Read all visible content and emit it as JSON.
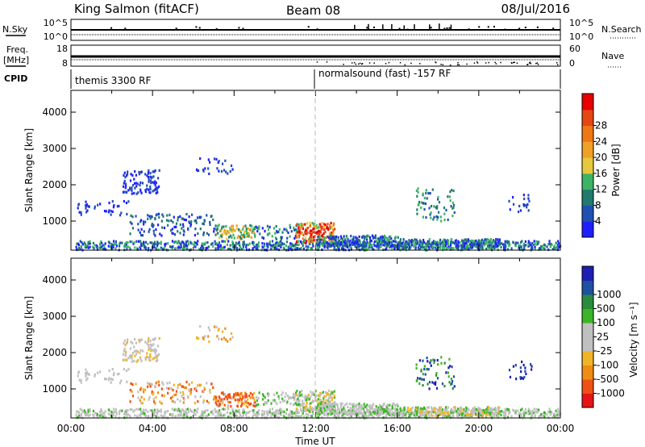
{
  "header": {
    "station": "King Salmon (fitACF)",
    "beam": "Beam 08",
    "date": "08/Jul/2016"
  },
  "top_panels": {
    "nsky_label": "N.Sky",
    "nsky_ticks": [
      "10^5",
      "10^0"
    ],
    "nsearch_label": "N.Search",
    "nsearch_ticks": [
      "10^5",
      "10^0"
    ],
    "freq_label": "Freq.",
    "freq_unit": "[MHz]",
    "freq_ticks": [
      "18",
      "8"
    ],
    "nave_label": "Nave",
    "nave_ticks": [
      "60",
      "0"
    ],
    "cpid_label": "CPID",
    "cpid_segments": [
      "themis 3300 RF",
      "normalsound (fast) -157 RF"
    ]
  },
  "colors": {
    "power": [
      "#1e1eff",
      "#2050b4",
      "#207a6e",
      "#3cb464",
      "#e6c83c",
      "#f0a028",
      "#f07814",
      "#e64614",
      "#e60000"
    ],
    "velocity": [
      "#e61414",
      "#f05014",
      "#f08c14",
      "#f0b428",
      "#c0c0c0",
      "#c0c0c0",
      "#3cb428",
      "#288c3c",
      "#2050a0",
      "#1e1eb4"
    ]
  },
  "chart_data": [
    {
      "type": "heatmap",
      "name": "power",
      "xlabel": "",
      "ylabel": "Slant Range [km]",
      "yticks": [
        1000,
        2000,
        3000,
        4000
      ],
      "ylim": [
        200,
        4600
      ],
      "colorbar_label": "Power [dB]",
      "colorbar_ticks": [
        "4",
        "8",
        "12",
        "16",
        "20",
        "24",
        "28"
      ]
    },
    {
      "type": "heatmap",
      "name": "velocity",
      "xlabel": "Time UT",
      "ylabel": "Slant Range [km]",
      "xticks": [
        "00:00",
        "04:00",
        "08:00",
        "12:00",
        "16:00",
        "20:00",
        "00:00"
      ],
      "xlim_hours": [
        0,
        24
      ],
      "yticks": [
        1000,
        2000,
        3000,
        4000
      ],
      "ylim": [
        200,
        4600
      ],
      "colorbar_label": "Velocity [m s⁻¹]",
      "colorbar_ticks": [
        "-1000",
        "-500",
        "-100",
        "-25",
        "25",
        "100",
        "500",
        "1000"
      ],
      "colorbar_order_top_to_bottom": [
        "1000",
        "500",
        "100",
        "25",
        "-25",
        "-100",
        "-500",
        "-1000"
      ]
    }
  ]
}
